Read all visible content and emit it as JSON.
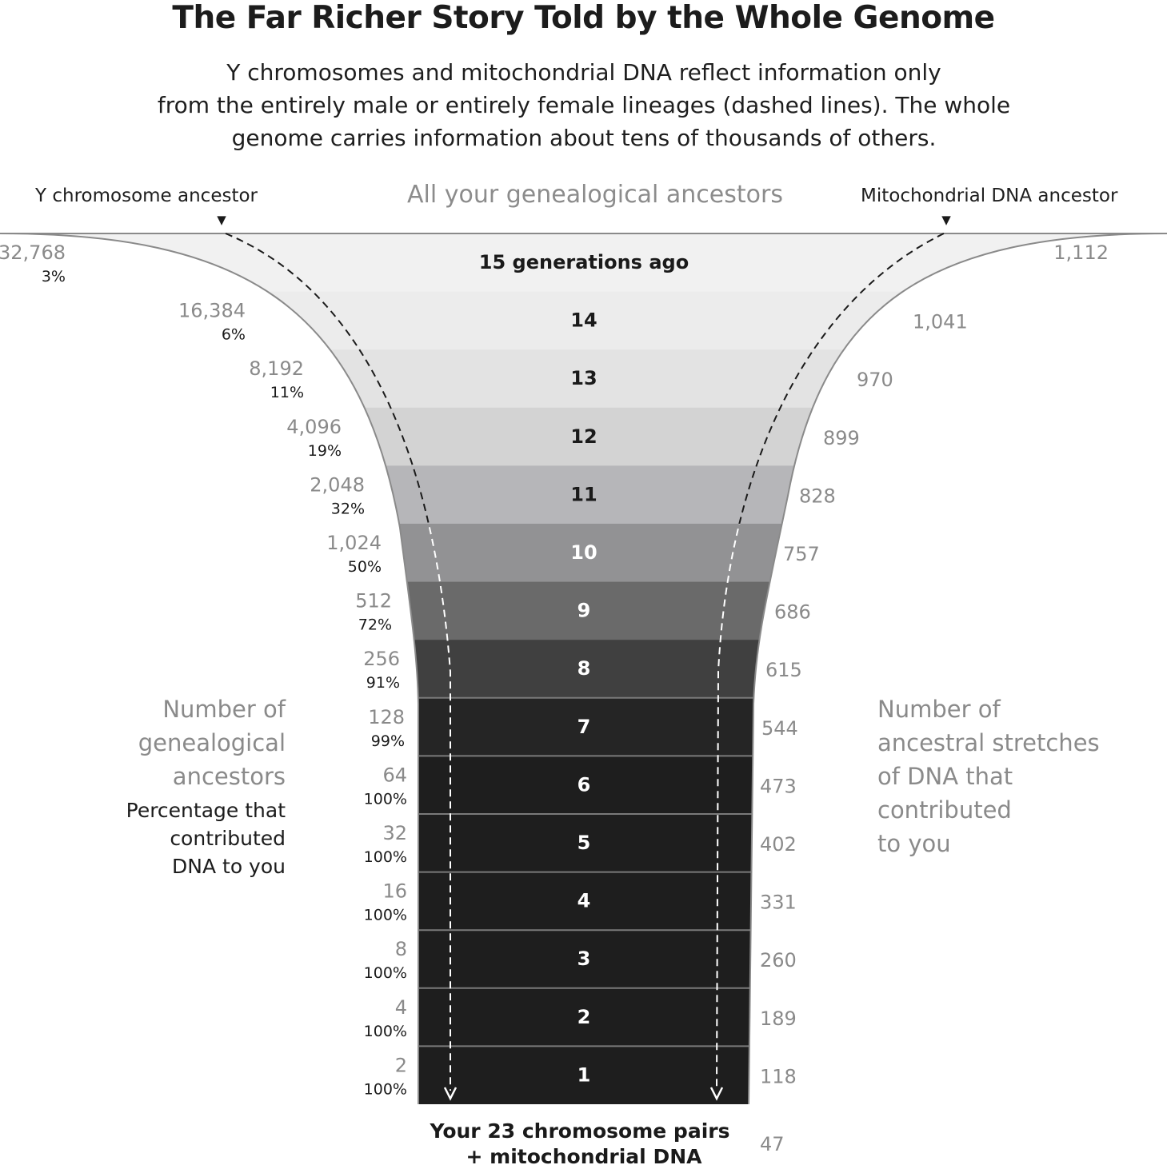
{
  "title": "The Far Richer Story Told by the Whole Genome",
  "subtitle": [
    "Y chromosomes and mitochondrial DNA reflect information only",
    "from the entirely male or entirely female lineages (dashed lines). The whole",
    "genome carries information about tens of thousands of others."
  ],
  "labels": {
    "y_ancestor": "Y chromosome ancestor",
    "all_ancestors": "All your genealogical ancestors",
    "mito_ancestor": "Mitochondrial DNA ancestor",
    "left_heading": [
      "Number of",
      "genealogical",
      "ancestors"
    ],
    "left_subheading": [
      "Percentage that",
      "contributed",
      "DNA to you"
    ],
    "right_heading": [
      "Number of",
      "ancestral stretches",
      "of DNA that",
      "contributed",
      "to you"
    ],
    "bottom": [
      "Your 23 chromosome pairs",
      "+ mitochondrial DNA"
    ],
    "bottom_value": "47",
    "marker_glyph": "▼"
  },
  "chart_data": {
    "type": "table",
    "rows": [
      {
        "label": "15 generations ago",
        "ancestors": "32,768",
        "percent": "3%",
        "stretches": "1,112",
        "color": "#f1f1f1",
        "text_color": "#1a1a1a"
      },
      {
        "label": "14",
        "ancestors": "16,384",
        "percent": "6%",
        "stretches": "1,041",
        "color": "#ececec",
        "text_color": "#1a1a1a"
      },
      {
        "label": "13",
        "ancestors": "8,192",
        "percent": "11%",
        "stretches": "970",
        "color": "#e3e3e3",
        "text_color": "#1a1a1a"
      },
      {
        "label": "12",
        "ancestors": "4,096",
        "percent": "19%",
        "stretches": "899",
        "color": "#d3d3d3",
        "text_color": "#1a1a1a"
      },
      {
        "label": "11",
        "ancestors": "2,048",
        "percent": "32%",
        "stretches": "828",
        "color": "#b6b6b9",
        "text_color": "#1a1a1a"
      },
      {
        "label": "10",
        "ancestors": "1,024",
        "percent": "50%",
        "stretches": "757",
        "color": "#929294",
        "text_color": "#ffffff"
      },
      {
        "label": "9",
        "ancestors": "512",
        "percent": "72%",
        "stretches": "686",
        "color": "#6a6a6a",
        "text_color": "#ffffff"
      },
      {
        "label": "8",
        "ancestors": "256",
        "percent": "91%",
        "stretches": "615",
        "color": "#404040",
        "text_color": "#ffffff"
      },
      {
        "label": "7",
        "ancestors": "128",
        "percent": "99%",
        "stretches": "544",
        "color": "#252525",
        "text_color": "#ffffff"
      },
      {
        "label": "6",
        "ancestors": "64",
        "percent": "100%",
        "stretches": "473",
        "color": "#1e1e1e",
        "text_color": "#ffffff"
      },
      {
        "label": "5",
        "ancestors": "32",
        "percent": "100%",
        "stretches": "402",
        "color": "#1e1e1e",
        "text_color": "#ffffff"
      },
      {
        "label": "4",
        "ancestors": "16",
        "percent": "100%",
        "stretches": "331",
        "color": "#1e1e1e",
        "text_color": "#ffffff"
      },
      {
        "label": "3",
        "ancestors": "8",
        "percent": "100%",
        "stretches": "260",
        "color": "#1e1e1e",
        "text_color": "#ffffff"
      },
      {
        "label": "2",
        "ancestors": "4",
        "percent": "100%",
        "stretches": "189",
        "color": "#1e1e1e",
        "text_color": "#ffffff"
      },
      {
        "label": "1",
        "ancestors": "2",
        "percent": "100%",
        "stretches": "118",
        "color": "#1e1e1e",
        "text_color": "#ffffff"
      }
    ]
  }
}
